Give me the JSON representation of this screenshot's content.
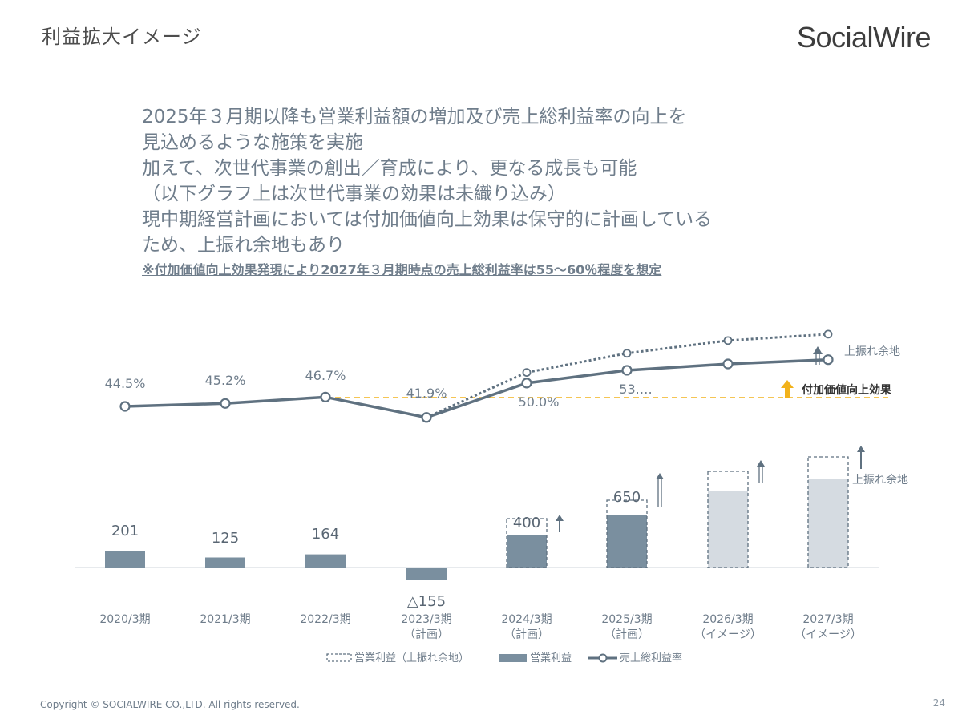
{
  "header": {
    "title": "利益拡大イメージ",
    "logo_text": "SocialWire"
  },
  "bullets": [
    "2025年３月期以降も営業利益額の増加及び売上総利益率の向上を",
    "見込めるような施策を実施",
    "加えて、次世代事業の創出／育成により、更なる成長も可能",
    "（以下グラフ上は次世代事業の効果は未織り込み）",
    "現中期経営計画においては付加価値向上効果は保守的に計画している",
    "ため、上振れ余地もあり"
  ],
  "note": "※付加価値向上効果発現により2027年３月期時点の売上総利益率は55～60％程度を想定",
  "footer": {
    "copyright": "Copyright © SOCIALWIRE CO.,LTD. All rights reserved.",
    "page_number": "24"
  },
  "colors": {
    "bar": "#7a8f9f",
    "bar_light": "#d5dbe1",
    "line": "#5f7180",
    "dashed_reference": "#f2b21b",
    "arrow_orange": "#f2b21b",
    "text": "#6f7d8b"
  },
  "chart_data": {
    "type": "bar+line",
    "categories": [
      [
        "2020/3期"
      ],
      [
        "2021/3期"
      ],
      [
        "2022/3期"
      ],
      [
        "2023/3期",
        "（計画）"
      ],
      [
        "2024/3期",
        "（計画）"
      ],
      [
        "2025/3期",
        "（計画）"
      ],
      [
        "2026/3期",
        "（イメージ）"
      ],
      [
        "2027/3期",
        "（イメージ）"
      ]
    ],
    "series": [
      {
        "name": "営業利益",
        "type": "bar",
        "values": [
          201,
          125,
          164,
          -155,
          400,
          650,
          950,
          1100
        ],
        "labels": [
          "201",
          "125",
          "164",
          "△155",
          "400",
          "650",
          "",
          ""
        ]
      },
      {
        "name": "営業利益（上振れ余地）",
        "type": "bar-dashed",
        "values": [
          null,
          null,
          null,
          null,
          610,
          840,
          1200,
          1380
        ]
      },
      {
        "name": "売上総利益率",
        "type": "line",
        "values": [
          44.5,
          45.2,
          46.7,
          41.9,
          50.0,
          53.0,
          54.5,
          55.5
        ],
        "labels": [
          "44.5%",
          "45.2%",
          "46.7%",
          "41.9%",
          "50.0%",
          "53.…",
          "",
          ""
        ]
      },
      {
        "name": "売上総利益率（上振れ）",
        "type": "line-dotted",
        "values": [
          null,
          null,
          null,
          41.9,
          52.5,
          57.0,
          60.0,
          61.5
        ]
      }
    ],
    "reference_line": {
      "value": 46.7,
      "label": "付加価値向上効果"
    },
    "annotations": {
      "line_upside": "上振れ余地",
      "bar_upside": "上振れ余地"
    },
    "legend": [
      {
        "label": "営業利益（上振れ余地）",
        "style": "dashed-box"
      },
      {
        "label": "営業利益",
        "style": "bar"
      },
      {
        "label": "売上総利益率",
        "style": "line-marker"
      }
    ]
  }
}
